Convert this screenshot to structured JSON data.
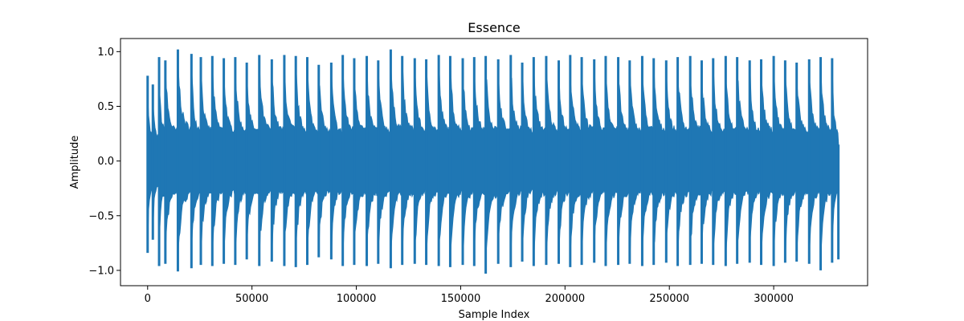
{
  "chart_data": {
    "type": "line",
    "title": "Essence",
    "xlabel": "Sample Index",
    "ylabel": "Amplitude",
    "xlim": [
      -13000,
      345000
    ],
    "ylim": [
      -1.14,
      1.12
    ],
    "x_ticks": [
      {
        "value": 0,
        "label": "0"
      },
      {
        "value": 50000,
        "label": "50000"
      },
      {
        "value": 100000,
        "label": "100000"
      },
      {
        "value": 150000,
        "label": "150000"
      },
      {
        "value": 200000,
        "label": "200000"
      },
      {
        "value": 250000,
        "label": "250000"
      },
      {
        "value": 300000,
        "label": "300000"
      }
    ],
    "y_ticks": [
      {
        "value": -1.0,
        "label": "−1.0"
      },
      {
        "value": -0.5,
        "label": "−0.5"
      },
      {
        "value": 0.0,
        "label": "0.0"
      },
      {
        "value": 0.5,
        "label": "0.5"
      },
      {
        "value": 1.0,
        "label": "1.0"
      }
    ],
    "grid": false,
    "series": [
      {
        "color": "#1f77b4",
        "description_of_signal": "audio waveform, roughly 331000 samples, percussive bursts with peaks near ±0.95 decaying to about ±0.3",
        "sample_count": 331000,
        "envelope": {
          "x": [
            0,
            2500,
            5500,
            8500,
            14500,
            21000,
            25500,
            31000,
            36500,
            42000,
            47500,
            53500,
            59500,
            65500,
            71000,
            76500,
            82000,
            88000,
            93500,
            99000,
            105000,
            110500,
            116500,
            122000,
            128000,
            133500,
            139500,
            145000,
            151000,
            156500,
            162000,
            168000,
            174000,
            179500,
            185000,
            191000,
            197000,
            202500,
            208000,
            214000,
            219500,
            225500,
            231000,
            237000,
            242500,
            248500,
            254000,
            260000,
            265500,
            271000,
            277000,
            282500,
            288500,
            294000,
            300000,
            305500,
            311000,
            317000,
            322500,
            328000,
            331000
          ],
          "max": [
            0.78,
            0.7,
            0.95,
            0.92,
            1.02,
            0.98,
            0.95,
            0.96,
            0.94,
            0.95,
            0.9,
            0.97,
            0.93,
            0.97,
            0.96,
            0.95,
            0.88,
            0.9,
            0.97,
            0.94,
            0.96,
            0.92,
            1.02,
            0.96,
            0.94,
            0.93,
            0.97,
            0.96,
            0.94,
            0.95,
            0.96,
            0.93,
            0.97,
            0.9,
            0.95,
            0.96,
            0.92,
            0.97,
            0.95,
            0.93,
            0.96,
            0.95,
            0.92,
            0.96,
            0.94,
            0.92,
            0.95,
            0.96,
            0.92,
            0.94,
            0.96,
            0.95,
            0.92,
            0.93,
            0.96,
            0.92,
            0.9,
            0.93,
            0.95,
            0.94,
            0.15
          ],
          "min": [
            -0.84,
            -0.72,
            -0.96,
            -0.94,
            -1.01,
            -0.98,
            -0.95,
            -0.96,
            -0.94,
            -0.95,
            -0.9,
            -0.96,
            -0.92,
            -0.96,
            -0.97,
            -0.95,
            -0.88,
            -0.9,
            -0.96,
            -0.95,
            -0.96,
            -0.94,
            -0.98,
            -0.95,
            -0.94,
            -0.95,
            -0.96,
            -0.97,
            -0.95,
            -0.96,
            -1.03,
            -0.94,
            -0.97,
            -0.92,
            -0.96,
            -0.95,
            -0.94,
            -0.97,
            -0.95,
            -0.93,
            -0.96,
            -0.95,
            -0.94,
            -0.96,
            -0.95,
            -0.93,
            -0.96,
            -0.95,
            -0.94,
            -0.95,
            -0.96,
            -0.94,
            -0.93,
            -0.95,
            -0.96,
            -0.93,
            -0.92,
            -0.94,
            -1.0,
            -0.93,
            -0.9
          ]
        }
      }
    ]
  }
}
